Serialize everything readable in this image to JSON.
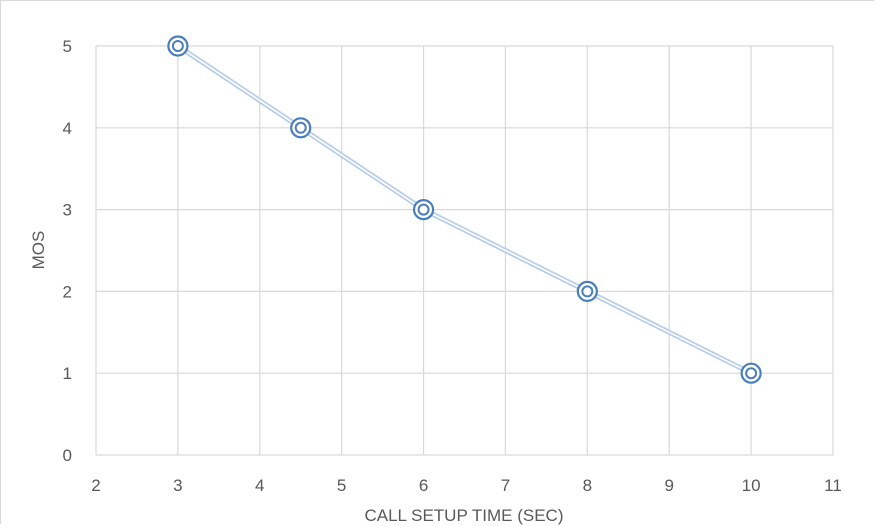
{
  "chart_data": {
    "type": "line",
    "title": "",
    "xlabel": "CALL SETUP TIME (SEC)",
    "ylabel": "MOS",
    "xlim": [
      2,
      11
    ],
    "ylim": [
      0,
      5
    ],
    "xticks": [
      "2",
      "3",
      "4",
      "5",
      "6",
      "7",
      "8",
      "9",
      "10",
      "11"
    ],
    "yticks": [
      "0",
      "1",
      "2",
      "3",
      "4",
      "5"
    ],
    "grid": true,
    "legend": "none",
    "series": [
      {
        "x": [
          3,
          4.5,
          6,
          8,
          10
        ],
        "y": [
          5,
          4,
          3,
          2,
          1
        ],
        "color": "#4a7ebb",
        "line_color": "#b7cde8",
        "marker": "double-circle"
      }
    ]
  }
}
